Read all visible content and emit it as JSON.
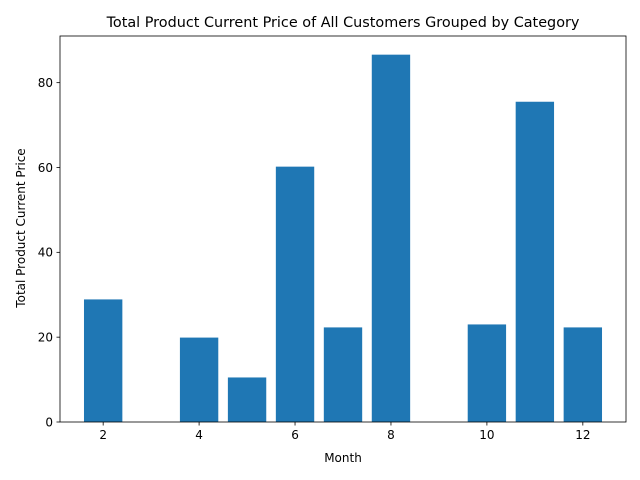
{
  "chart_data": {
    "type": "bar",
    "title": "Total Product Current Price of All Customers Grouped by Category",
    "xlabel": "Month",
    "ylabel": "Total Product Current Price",
    "x": [
      2,
      4,
      5,
      6,
      7,
      8,
      10,
      11,
      12
    ],
    "values": [
      28.9,
      19.9,
      10.5,
      60.2,
      22.3,
      86.6,
      23.0,
      75.5,
      22.3
    ],
    "xlim": [
      1.1,
      12.9
    ],
    "ylim": [
      0,
      91
    ],
    "xticks": [
      2,
      4,
      6,
      8,
      10,
      12
    ],
    "yticks": [
      0,
      20,
      40,
      60,
      80
    ],
    "bar_color": "#1f77b4",
    "grid": false,
    "legend": "none"
  }
}
